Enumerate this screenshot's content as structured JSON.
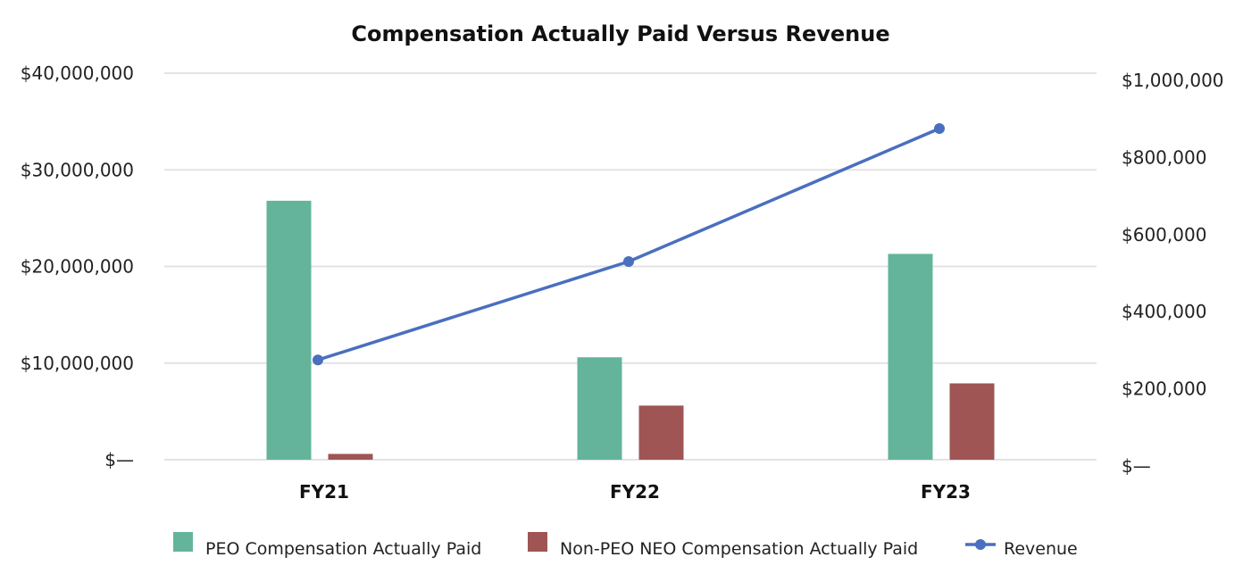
{
  "chart_data": {
    "type": "bar",
    "title": "Compensation Actually Paid Versus Revenue",
    "categories": [
      "FY21",
      "FY22",
      "FY23"
    ],
    "series": [
      {
        "name": "PEO Compensation Actually Paid",
        "kind": "bar",
        "axis": "left",
        "color": "#63b49b",
        "values": [
          26800000,
          10600000,
          21300000
        ]
      },
      {
        "name": "Non-PEO NEO Compensation Actually Paid",
        "kind": "bar",
        "axis": "left",
        "color": "#9e5553",
        "values": [
          600000,
          5600000,
          7900000
        ]
      },
      {
        "name": "Revenue",
        "kind": "line",
        "axis": "right",
        "color": "#4a6fbf",
        "values": [
          275000,
          530000,
          875000
        ]
      }
    ],
    "y_left": {
      "ylim": [
        0,
        40000000
      ],
      "ticks": [
        0,
        10000000,
        20000000,
        30000000,
        40000000
      ],
      "tick_labels": [
        "$—",
        "$10,000,000",
        "$20,000,000",
        "$30,000,000",
        "$40,000,000"
      ]
    },
    "y_right": {
      "ylim": [
        0,
        1000000
      ],
      "ticks": [
        0,
        200000,
        400000,
        600000,
        800000,
        1000000
      ],
      "tick_labels": [
        "$—",
        "$200,000",
        "$400,000",
        "$600,000",
        "$800,000",
        "$1,000,000"
      ]
    },
    "xlabel": "",
    "ylabel": "",
    "grid": true,
    "legend_position": "bottom"
  }
}
